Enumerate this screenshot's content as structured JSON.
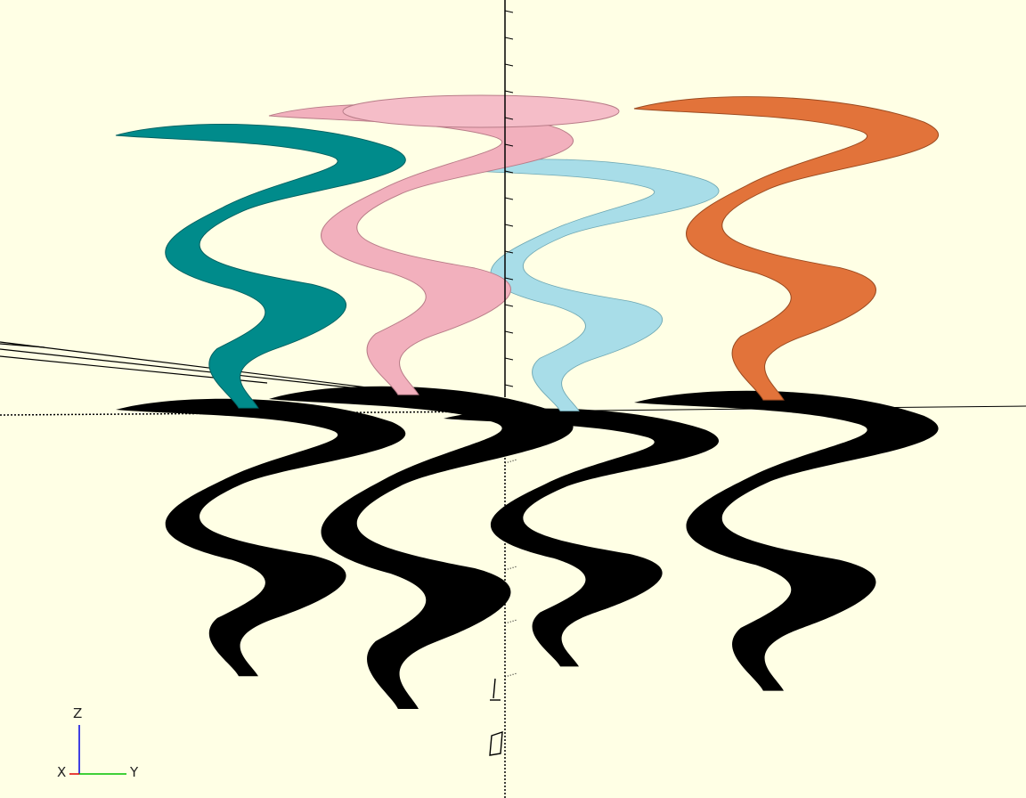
{
  "viewport": {
    "background": "#ffffe5",
    "shadow_color": "#000000",
    "axis_color": "#000000"
  },
  "objects": [
    {
      "name": "teal",
      "color": "#008b8b",
      "highlight": "#00a8a8"
    },
    {
      "name": "pink",
      "color": "#f2b0bd",
      "highlight": "#ffc8d2"
    },
    {
      "name": "light-blue",
      "color": "#a8dde8",
      "highlight": "#c4f0f8"
    },
    {
      "name": "orange",
      "color": "#e2733a",
      "highlight": "#ff8a4c"
    }
  ],
  "axes_gizmo": {
    "x_label": "X",
    "y_label": "Y",
    "z_label": "Z",
    "x_color": "#e00000",
    "y_color": "#00c000",
    "z_color": "#0000e0"
  }
}
